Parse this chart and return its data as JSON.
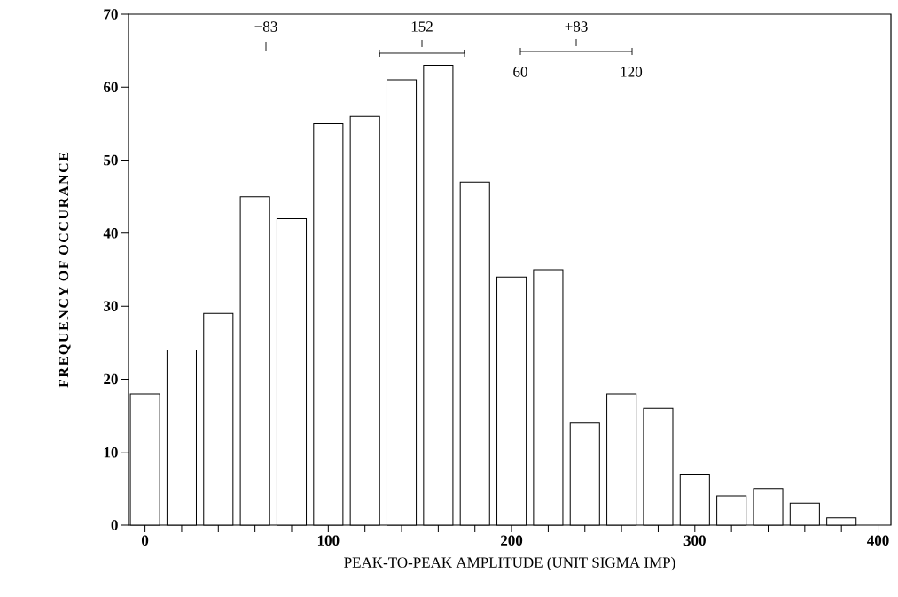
{
  "chart_data": {
    "type": "bar",
    "xlabel": "PEAK-TO-PEAK AMPLITUDE (UNIT SIGMA IMP)",
    "ylabel": "FREQUENCY OF OCCURANCE",
    "x": [
      0,
      20,
      40,
      60,
      80,
      100,
      120,
      140,
      160,
      180,
      200,
      220,
      240,
      260,
      280,
      300,
      320,
      340,
      360,
      380
    ],
    "values": [
      18,
      24,
      29,
      45,
      42,
      55,
      56,
      61,
      63,
      47,
      34,
      35,
      14,
      18,
      16,
      7,
      4,
      5,
      3,
      1
    ],
    "color": "#000000",
    "xlim": [
      -9,
      407
    ],
    "ylim": [
      0,
      70
    ],
    "xticks": [
      0,
      {
        "value": 20,
        "label": null
      },
      {
        "value": 40,
        "label": null
      },
      {
        "value": 60,
        "label": null
      },
      {
        "value": 80,
        "label": null
      },
      100,
      {
        "value": 120,
        "label": null
      },
      {
        "value": 140,
        "label": null
      },
      {
        "value": 160,
        "label": null
      },
      {
        "value": 180,
        "label": null
      },
      200,
      {
        "value": 220,
        "label": null
      },
      {
        "value": 240,
        "label": null
      },
      {
        "value": 260,
        "label": null
      },
      {
        "value": 280,
        "label": null
      },
      300,
      {
        "value": 320,
        "label": null
      },
      {
        "value": 340,
        "label": null
      },
      {
        "value": 360,
        "label": null
      },
      {
        "value": 380,
        "label": null
      },
      400
    ],
    "yticks": [
      0,
      10,
      20,
      30,
      40,
      50,
      60,
      70
    ],
    "grid": false,
    "annotations": [
      "−83",
      "152",
      "+83",
      "60",
      "120"
    ]
  }
}
